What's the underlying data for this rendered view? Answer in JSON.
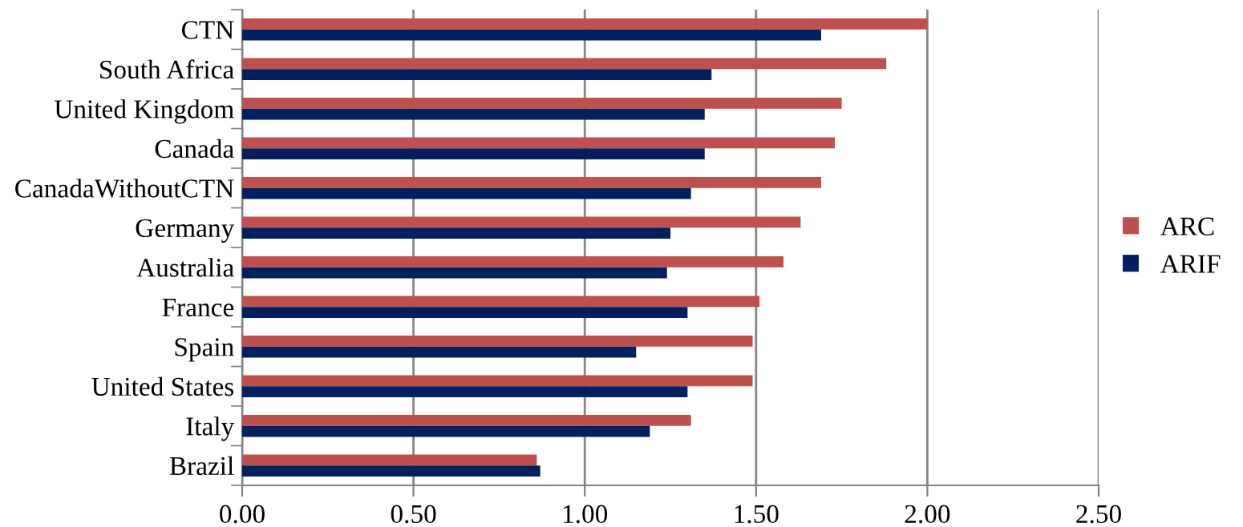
{
  "chart_data": {
    "type": "bar",
    "orientation": "horizontal",
    "categories": [
      "CTN",
      "South Africa",
      "United Kingdom",
      "Canada",
      "CanadaWithoutCTN",
      "Germany",
      "Australia",
      "France",
      "Spain",
      "United States",
      "Italy",
      "Brazil"
    ],
    "series": [
      {
        "name": "ARC",
        "color": "#c0504d",
        "values": [
          2.0,
          1.88,
          1.75,
          1.73,
          1.69,
          1.63,
          1.58,
          1.51,
          1.49,
          1.49,
          1.31,
          0.86
        ]
      },
      {
        "name": "ARIF",
        "color": "#002060",
        "values": [
          1.69,
          1.37,
          1.35,
          1.35,
          1.31,
          1.25,
          1.24,
          1.3,
          1.15,
          1.3,
          1.19,
          0.87
        ]
      }
    ],
    "xlim": [
      0,
      2.5
    ],
    "xticks": [
      {
        "value": 0,
        "label": "0.00"
      },
      {
        "value": 0.5,
        "label": "0.50"
      },
      {
        "value": 1.0,
        "label": "1.00"
      },
      {
        "value": 1.5,
        "label": "1.50"
      },
      {
        "value": 2.0,
        "label": "2.00"
      },
      {
        "value": 2.5,
        "label": "2.50"
      }
    ],
    "grid": "x",
    "legend": "right"
  }
}
